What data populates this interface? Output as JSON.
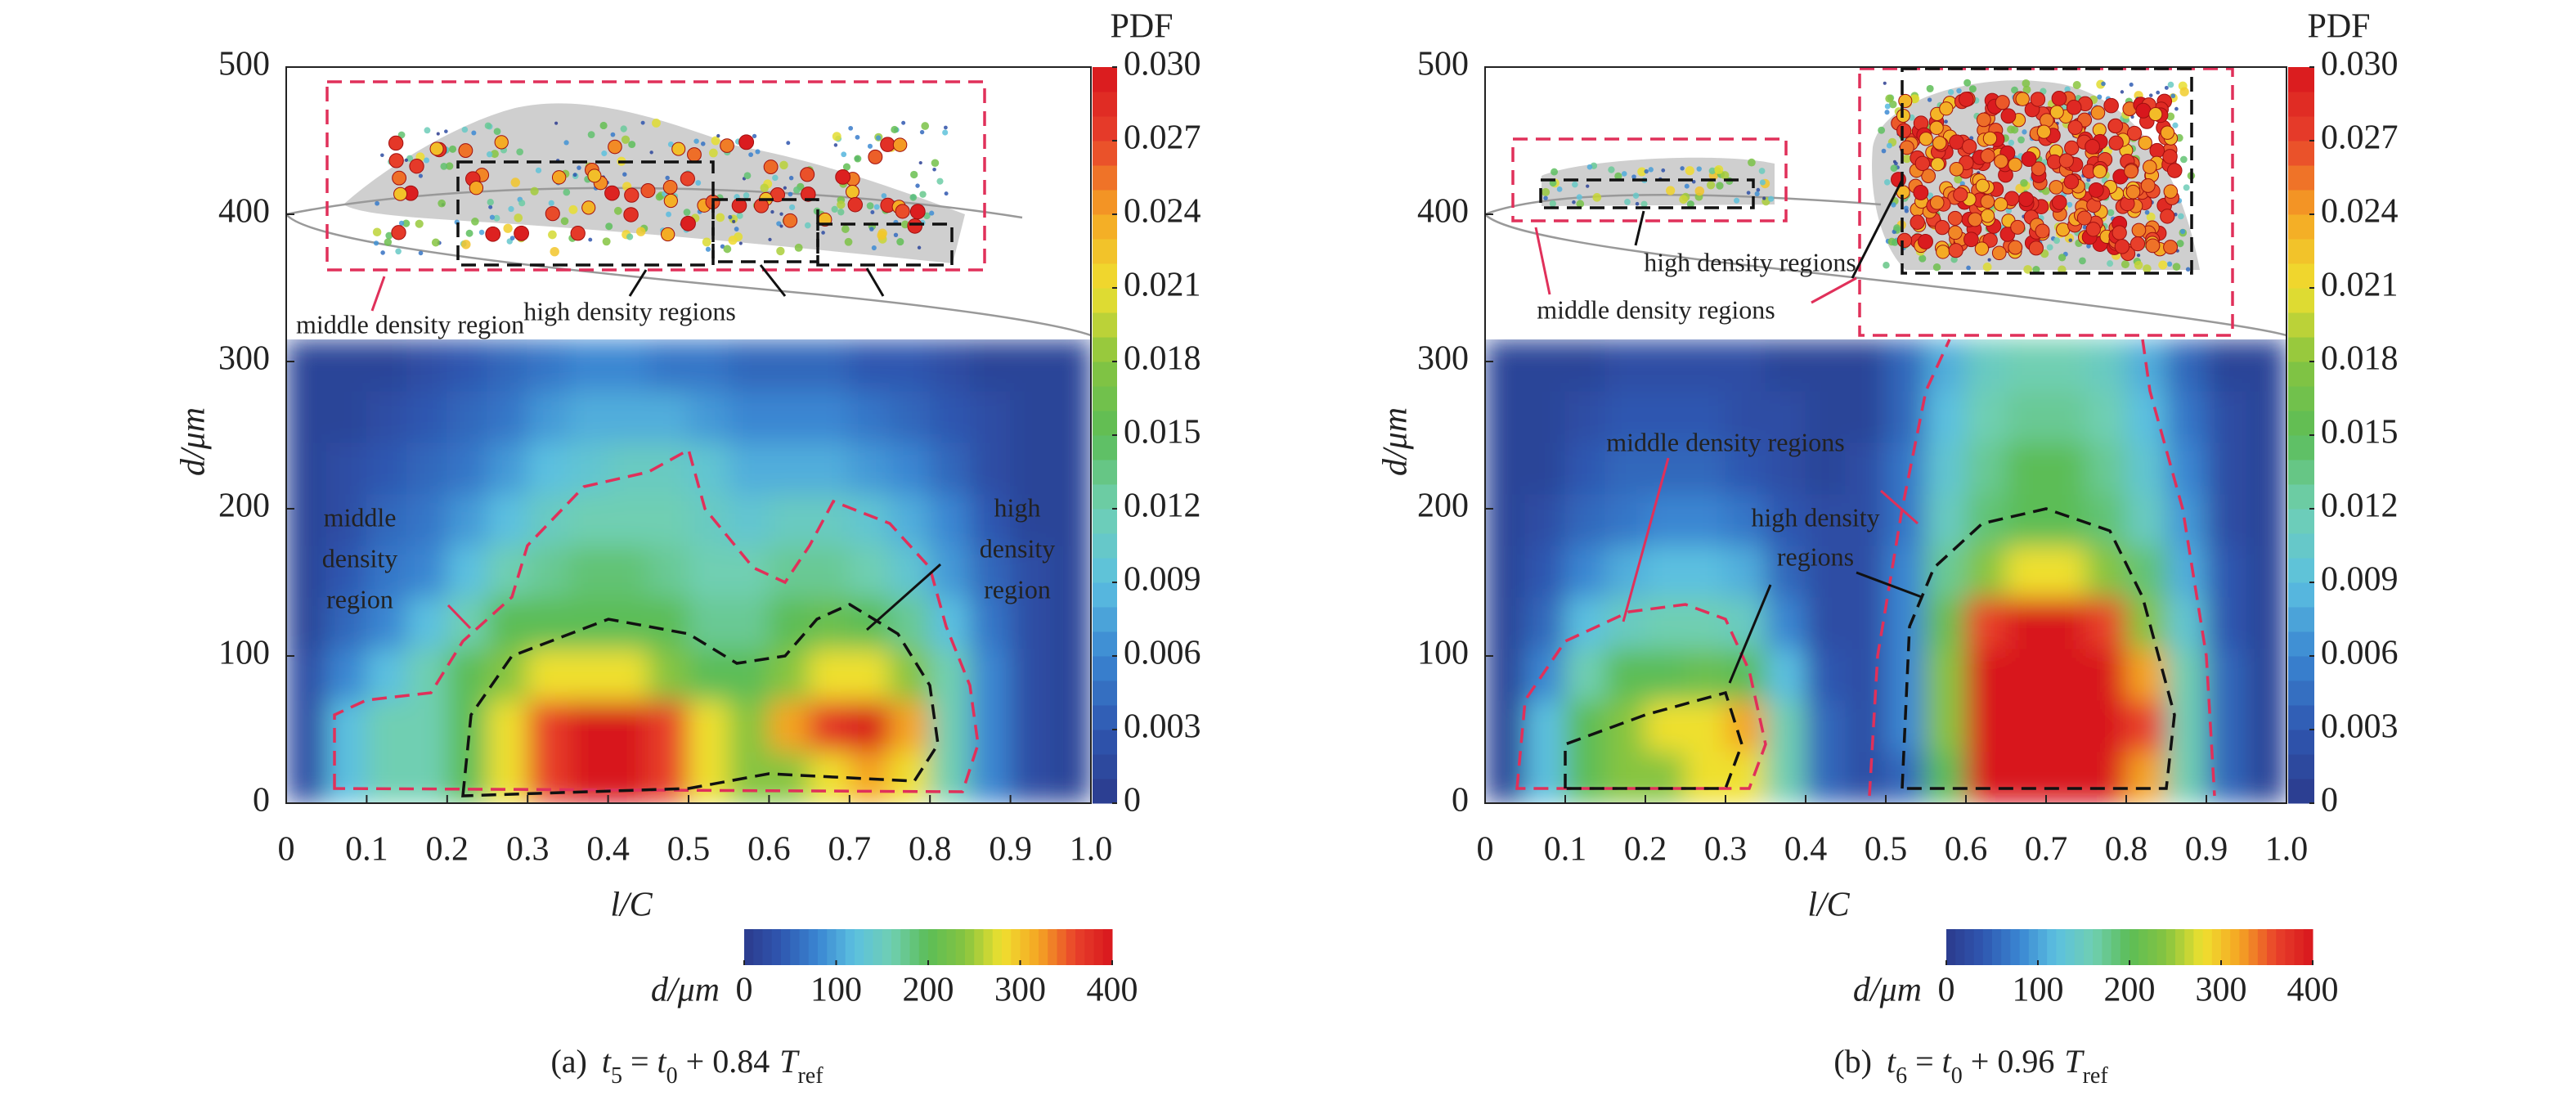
{
  "chart_data": [
    {
      "type": "heatmap",
      "xlabel": "l/C",
      "ylabel": "d/μm",
      "xlim": [
        0,
        1
      ],
      "ylim": [
        0,
        500
      ],
      "xticks": [
        0,
        0.1,
        0.2,
        0.3,
        0.4,
        0.5,
        0.6,
        0.7,
        0.8,
        0.9,
        {
          "value": 1,
          "label": "1.0"
        }
      ],
      "yticks": [
        0,
        100,
        200,
        300,
        400,
        500
      ],
      "x_edges": [
        0,
        0.05,
        0.1,
        0.15,
        0.2,
        0.25,
        0.3,
        0.35,
        0.4,
        0.45,
        0.5,
        0.55,
        0.6,
        0.65,
        0.7,
        0.75,
        0.8,
        0.85,
        0.9,
        0.95,
        1
      ],
      "y_edges": [
        0,
        35,
        70,
        105,
        140,
        175,
        210,
        245,
        280,
        315
      ],
      "z": [
        [
          0.002,
          0.009,
          0.012,
          0.012,
          0.015,
          0.021,
          0.027,
          0.03,
          0.03,
          0.027,
          0.021,
          0.018,
          0.018,
          0.021,
          0.024,
          0.021,
          0.012,
          0.006,
          0.002,
          0.001
        ],
        [
          0.002,
          0.009,
          0.012,
          0.012,
          0.015,
          0.021,
          0.027,
          0.03,
          0.03,
          0.027,
          0.021,
          0.018,
          0.024,
          0.028,
          0.03,
          0.024,
          0.012,
          0.006,
          0.002,
          0.001
        ],
        [
          0.002,
          0.006,
          0.009,
          0.012,
          0.015,
          0.018,
          0.021,
          0.021,
          0.021,
          0.018,
          0.015,
          0.015,
          0.018,
          0.021,
          0.021,
          0.018,
          0.012,
          0.006,
          0.002,
          0.001
        ],
        [
          0.001,
          0.004,
          0.006,
          0.009,
          0.012,
          0.015,
          0.015,
          0.015,
          0.015,
          0.015,
          0.013,
          0.013,
          0.015,
          0.016,
          0.015,
          0.013,
          0.009,
          0.005,
          0.002,
          0.001
        ],
        [
          0.001,
          0.003,
          0.005,
          0.006,
          0.009,
          0.012,
          0.013,
          0.014,
          0.014,
          0.013,
          0.012,
          0.012,
          0.013,
          0.013,
          0.012,
          0.01,
          0.007,
          0.004,
          0.002,
          0.001
        ],
        [
          0.001,
          0.002,
          0.004,
          0.005,
          0.007,
          0.009,
          0.011,
          0.012,
          0.012,
          0.012,
          0.011,
          0.01,
          0.011,
          0.011,
          0.01,
          0.008,
          0.006,
          0.003,
          0.001,
          0.001
        ],
        [
          0.001,
          0.002,
          0.003,
          0.004,
          0.005,
          0.007,
          0.009,
          0.01,
          0.011,
          0.011,
          0.01,
          0.008,
          0.008,
          0.008,
          0.007,
          0.006,
          0.004,
          0.002,
          0.001,
          0.001
        ],
        [
          0.001,
          0.001,
          0.002,
          0.003,
          0.004,
          0.005,
          0.007,
          0.008,
          0.008,
          0.008,
          0.007,
          0.006,
          0.006,
          0.006,
          0.005,
          0.004,
          0.003,
          0.002,
          0.001,
          0.001
        ],
        [
          0.001,
          0.001,
          0.001,
          0.002,
          0.003,
          0.004,
          0.005,
          0.006,
          0.006,
          0.005,
          0.005,
          0.004,
          0.004,
          0.004,
          0.003,
          0.003,
          0.002,
          0.001,
          0.001,
          0.001
        ]
      ],
      "colors": [
        "#2b3a8c",
        "#2f57b0",
        "#3a86d2",
        "#5cc0e0",
        "#6fcfb2",
        "#5cbd57",
        "#86c440",
        "#efe02f",
        "#f5a524",
        "#e8412b",
        "#d8161d"
      ],
      "colorbar": {
        "label": "PDF",
        "zlim": [
          0,
          0.03
        ],
        "ticks": [
          0,
          0.003,
          0.006,
          0.009,
          0.012,
          0.015,
          0.018,
          0.021,
          0.024,
          0.027,
          {
            "value": 0.03,
            "label": "0.030"
          }
        ]
      },
      "size_colorbar": {
        "label": "d/μm",
        "lim": [
          0,
          400
        ],
        "ticks": [
          0,
          100,
          200,
          300,
          400
        ]
      },
      "annotations": [
        {
          "lines": [
            "middle density region"
          ],
          "color": "#e0305a"
        },
        {
          "lines": [
            "high density regions"
          ],
          "color": "#111111"
        },
        {
          "lines": [
            "middle",
            "density",
            "region"
          ],
          "color": "#ffffff"
        },
        {
          "lines": [
            "high",
            "density",
            "region"
          ],
          "color": "#ffffff"
        }
      ],
      "caption": [
        "(a)",
        "t",
        "5",
        "=",
        "t",
        "0",
        "+ 0.84",
        "T",
        "ref"
      ]
    },
    {
      "type": "heatmap",
      "xlabel": "l/C",
      "ylabel": "d/μm",
      "xlim": [
        0,
        1
      ],
      "ylim": [
        0,
        500
      ],
      "xticks": [
        0,
        0.1,
        0.2,
        0.3,
        0.4,
        0.5,
        0.6,
        0.7,
        0.8,
        0.9,
        {
          "value": 1,
          "label": "1.0"
        }
      ],
      "yticks": [
        0,
        100,
        200,
        300,
        400,
        500
      ],
      "x_edges": [
        0,
        0.05,
        0.1,
        0.15,
        0.2,
        0.25,
        0.3,
        0.35,
        0.4,
        0.45,
        0.5,
        0.55,
        0.6,
        0.65,
        0.7,
        0.75,
        0.8,
        0.85,
        0.9,
        0.95,
        1
      ],
      "y_edges": [
        0,
        35,
        70,
        105,
        140,
        175,
        210,
        245,
        280,
        315
      ],
      "z": [
        [
          0.001,
          0.009,
          0.015,
          0.018,
          0.018,
          0.021,
          0.021,
          0.012,
          0.004,
          0.002,
          0.004,
          0.015,
          0.03,
          0.03,
          0.03,
          0.03,
          0.024,
          0.012,
          0.004,
          0.001
        ],
        [
          0.001,
          0.009,
          0.015,
          0.018,
          0.021,
          0.021,
          0.024,
          0.012,
          0.004,
          0.002,
          0.006,
          0.018,
          0.03,
          0.03,
          0.03,
          0.03,
          0.027,
          0.012,
          0.004,
          0.001
        ],
        [
          0.001,
          0.006,
          0.012,
          0.015,
          0.015,
          0.016,
          0.015,
          0.009,
          0.003,
          0.002,
          0.006,
          0.018,
          0.03,
          0.03,
          0.03,
          0.03,
          0.024,
          0.012,
          0.004,
          0.001
        ],
        [
          0.001,
          0.004,
          0.009,
          0.011,
          0.012,
          0.012,
          0.011,
          0.006,
          0.002,
          0.002,
          0.006,
          0.016,
          0.027,
          0.03,
          0.03,
          0.027,
          0.018,
          0.01,
          0.003,
          0.001
        ],
        [
          0.001,
          0.003,
          0.006,
          0.008,
          0.009,
          0.009,
          0.008,
          0.004,
          0.002,
          0.002,
          0.006,
          0.013,
          0.018,
          0.021,
          0.021,
          0.018,
          0.014,
          0.008,
          0.003,
          0.001
        ],
        [
          0.001,
          0.002,
          0.004,
          0.005,
          0.006,
          0.006,
          0.005,
          0.003,
          0.002,
          0.002,
          0.005,
          0.011,
          0.014,
          0.015,
          0.015,
          0.014,
          0.011,
          0.007,
          0.002,
          0.001
        ],
        [
          0.001,
          0.001,
          0.003,
          0.004,
          0.004,
          0.004,
          0.003,
          0.002,
          0.001,
          0.002,
          0.005,
          0.01,
          0.013,
          0.015,
          0.015,
          0.013,
          0.01,
          0.006,
          0.002,
          0.001
        ],
        [
          0.001,
          0.001,
          0.002,
          0.003,
          0.003,
          0.003,
          0.002,
          0.002,
          0.001,
          0.001,
          0.004,
          0.009,
          0.012,
          0.013,
          0.013,
          0.012,
          0.009,
          0.005,
          0.002,
          0.001
        ],
        [
          0.001,
          0.001,
          0.001,
          0.002,
          0.002,
          0.002,
          0.002,
          0.001,
          0.001,
          0.001,
          0.004,
          0.008,
          0.011,
          0.012,
          0.012,
          0.011,
          0.008,
          0.004,
          0.001,
          0.001
        ]
      ],
      "colors": [
        "#2b3a8c",
        "#2f57b0",
        "#3a86d2",
        "#5cc0e0",
        "#6fcfb2",
        "#5cbd57",
        "#86c440",
        "#efe02f",
        "#f5a524",
        "#e8412b",
        "#d8161d"
      ],
      "colorbar": {
        "label": "PDF",
        "zlim": [
          0,
          0.03
        ],
        "ticks": [
          0,
          0.003,
          0.006,
          0.009,
          0.012,
          0.015,
          0.018,
          0.021,
          0.024,
          0.027,
          {
            "value": 0.03,
            "label": "0.030"
          }
        ]
      },
      "size_colorbar": {
        "label": "d/μm",
        "lim": [
          0,
          400
        ],
        "ticks": [
          0,
          100,
          200,
          300,
          400
        ]
      },
      "annotations": [
        {
          "lines": [
            "high density regions"
          ],
          "color": "#111111"
        },
        {
          "lines": [
            "middle density regions"
          ],
          "color": "#e0305a"
        },
        {
          "lines": [
            "middle density regions"
          ],
          "color": "#ffffff"
        },
        {
          "lines": [
            "high density",
            "regions"
          ],
          "color": "#ffffff"
        }
      ],
      "caption": [
        "(b)",
        "t",
        "6",
        "=",
        "t",
        "0",
        "+ 0.96",
        "T",
        "ref"
      ]
    }
  ]
}
